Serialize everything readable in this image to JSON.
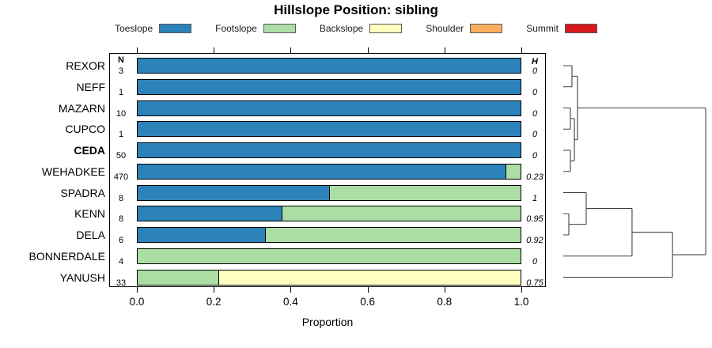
{
  "figure": {
    "n_column_header": "N",
    "h_column_header": "H"
  },
  "chart_data": {
    "type": "bar",
    "subtype": "horizontal-stacked-proportion",
    "title": "Hillslope Position: sibling",
    "xlabel": "Proportion",
    "xlim": [
      0,
      1
    ],
    "x_ticks": [
      0.0,
      0.2,
      0.4,
      0.6,
      0.8,
      1.0
    ],
    "x_tick_labels": [
      "0.0",
      "0.2",
      "0.4",
      "0.6",
      "0.8",
      "1.0"
    ],
    "grid": false,
    "legend_position": "top",
    "legend": [
      {
        "label": "Toeslope",
        "color": "#2b83ba"
      },
      {
        "label": "Footslope",
        "color": "#abdda4"
      },
      {
        "label": "Backslope",
        "color": "#ffffbf"
      },
      {
        "label": "Shoulder",
        "color": "#fdae61"
      },
      {
        "label": "Summit",
        "color": "#d7191c"
      }
    ],
    "rows": [
      {
        "name": "REXOR",
        "n": "3",
        "shannon_h": "0",
        "bold": false,
        "segments": [
          {
            "position": "Toeslope",
            "proportion": 1.0
          }
        ]
      },
      {
        "name": "NEFF",
        "n": "1",
        "shannon_h": "0",
        "bold": false,
        "segments": [
          {
            "position": "Toeslope",
            "proportion": 1.0
          }
        ]
      },
      {
        "name": "MAZARN",
        "n": "10",
        "shannon_h": "0",
        "bold": false,
        "segments": [
          {
            "position": "Toeslope",
            "proportion": 1.0
          }
        ]
      },
      {
        "name": "CUPCO",
        "n": "1",
        "shannon_h": "0",
        "bold": false,
        "segments": [
          {
            "position": "Toeslope",
            "proportion": 1.0
          }
        ]
      },
      {
        "name": "CEDA",
        "n": "50",
        "shannon_h": "0",
        "bold": true,
        "segments": [
          {
            "position": "Toeslope",
            "proportion": 1.0
          }
        ]
      },
      {
        "name": "WEHADKEE",
        "n": "470",
        "shannon_h": "0.23",
        "bold": false,
        "segments": [
          {
            "position": "Toeslope",
            "proportion": 0.96
          },
          {
            "position": "Footslope",
            "proportion": 0.04
          }
        ]
      },
      {
        "name": "SPADRA",
        "n": "8",
        "shannon_h": "1",
        "bold": false,
        "segments": [
          {
            "position": "Toeslope",
            "proportion": 0.5
          },
          {
            "position": "Footslope",
            "proportion": 0.5
          }
        ]
      },
      {
        "name": "KENN",
        "n": "8",
        "shannon_h": "0.95",
        "bold": false,
        "segments": [
          {
            "position": "Toeslope",
            "proportion": 0.375
          },
          {
            "position": "Footslope",
            "proportion": 0.625
          }
        ]
      },
      {
        "name": "DELA",
        "n": "6",
        "shannon_h": "0.92",
        "bold": false,
        "segments": [
          {
            "position": "Toeslope",
            "proportion": 0.333
          },
          {
            "position": "Footslope",
            "proportion": 0.667
          }
        ]
      },
      {
        "name": "BONNERDALE",
        "n": "4",
        "shannon_h": "0",
        "bold": false,
        "segments": [
          {
            "position": "Footslope",
            "proportion": 1.0
          }
        ]
      },
      {
        "name": "YANUSH",
        "n": "33",
        "shannon_h": "0.75",
        "bold": false,
        "segments": [
          {
            "position": "Footslope",
            "proportion": 0.21
          },
          {
            "position": "Backslope",
            "proportion": 0.79
          }
        ]
      }
    ],
    "dendrogram": {
      "orientation": "leaves-left-root-right",
      "merges": [
        {
          "id": "A",
          "a": "REXOR",
          "b": "NEFF",
          "height": 0.061
        },
        {
          "id": "B",
          "a": "MAZARN",
          "b": "CUPCO",
          "height": 0.05
        },
        {
          "id": "C",
          "a": "CEDA",
          "b": "WEHADKEE",
          "height": 0.05
        },
        {
          "id": "D",
          "a": "B",
          "b": "C",
          "height": 0.078
        },
        {
          "id": "E",
          "a": "A",
          "b": "D",
          "height": 0.1
        },
        {
          "id": "F",
          "a": "KENN",
          "b": "DELA",
          "height": 0.039
        },
        {
          "id": "G",
          "a": "SPADRA",
          "b": "F",
          "height": 0.161
        },
        {
          "id": "H",
          "a": "G",
          "b": "BONNERDALE",
          "height": 0.483
        },
        {
          "id": "I",
          "a": "H",
          "b": "YANUSH",
          "height": 0.767
        },
        {
          "id": "ROOT",
          "a": "E",
          "b": "I",
          "height": 1.0
        }
      ]
    }
  }
}
